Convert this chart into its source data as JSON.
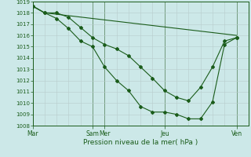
{
  "title": "",
  "xlabel": "Pression niveau de la mer( hPa )",
  "ylim": [
    1008,
    1019
  ],
  "yticks": [
    1008,
    1009,
    1010,
    1011,
    1012,
    1013,
    1014,
    1015,
    1016,
    1017,
    1018,
    1019
  ],
  "bg_color": "#cce8e8",
  "grid_color_major": "#b0c4c4",
  "grid_color_minor": "#c4d8d8",
  "line_color": "#1a5c1a",
  "xtick_labels": [
    "Mar",
    "Sam",
    "Mer",
    "Jeu",
    "Ven"
  ],
  "xtick_positions": [
    0,
    5,
    6,
    11,
    17
  ],
  "xlim": [
    0,
    18
  ],
  "line1_x": [
    0,
    1,
    2,
    3,
    4,
    5,
    6,
    7,
    8,
    9,
    10,
    11,
    12,
    13,
    14,
    15,
    16,
    17
  ],
  "line1_y": [
    1018.6,
    1018.0,
    1018.0,
    1017.6,
    1016.7,
    1015.8,
    1015.2,
    1014.8,
    1014.2,
    1013.2,
    1012.2,
    1011.1,
    1010.5,
    1010.2,
    1011.4,
    1013.2,
    1015.5,
    1015.8
  ],
  "line2_x": [
    0,
    1,
    2,
    3,
    4,
    5,
    6,
    7,
    8,
    9,
    10,
    11,
    12,
    13,
    14,
    15,
    16,
    17
  ],
  "line2_y": [
    1018.6,
    1018.0,
    1017.5,
    1016.6,
    1015.5,
    1015.0,
    1013.2,
    1012.0,
    1011.1,
    1009.7,
    1009.2,
    1009.2,
    1009.0,
    1008.6,
    1008.6,
    1010.1,
    1015.2,
    1015.8
  ],
  "line3_x": [
    0,
    1,
    17
  ],
  "line3_y": [
    1018.6,
    1018.0,
    1016.0
  ]
}
